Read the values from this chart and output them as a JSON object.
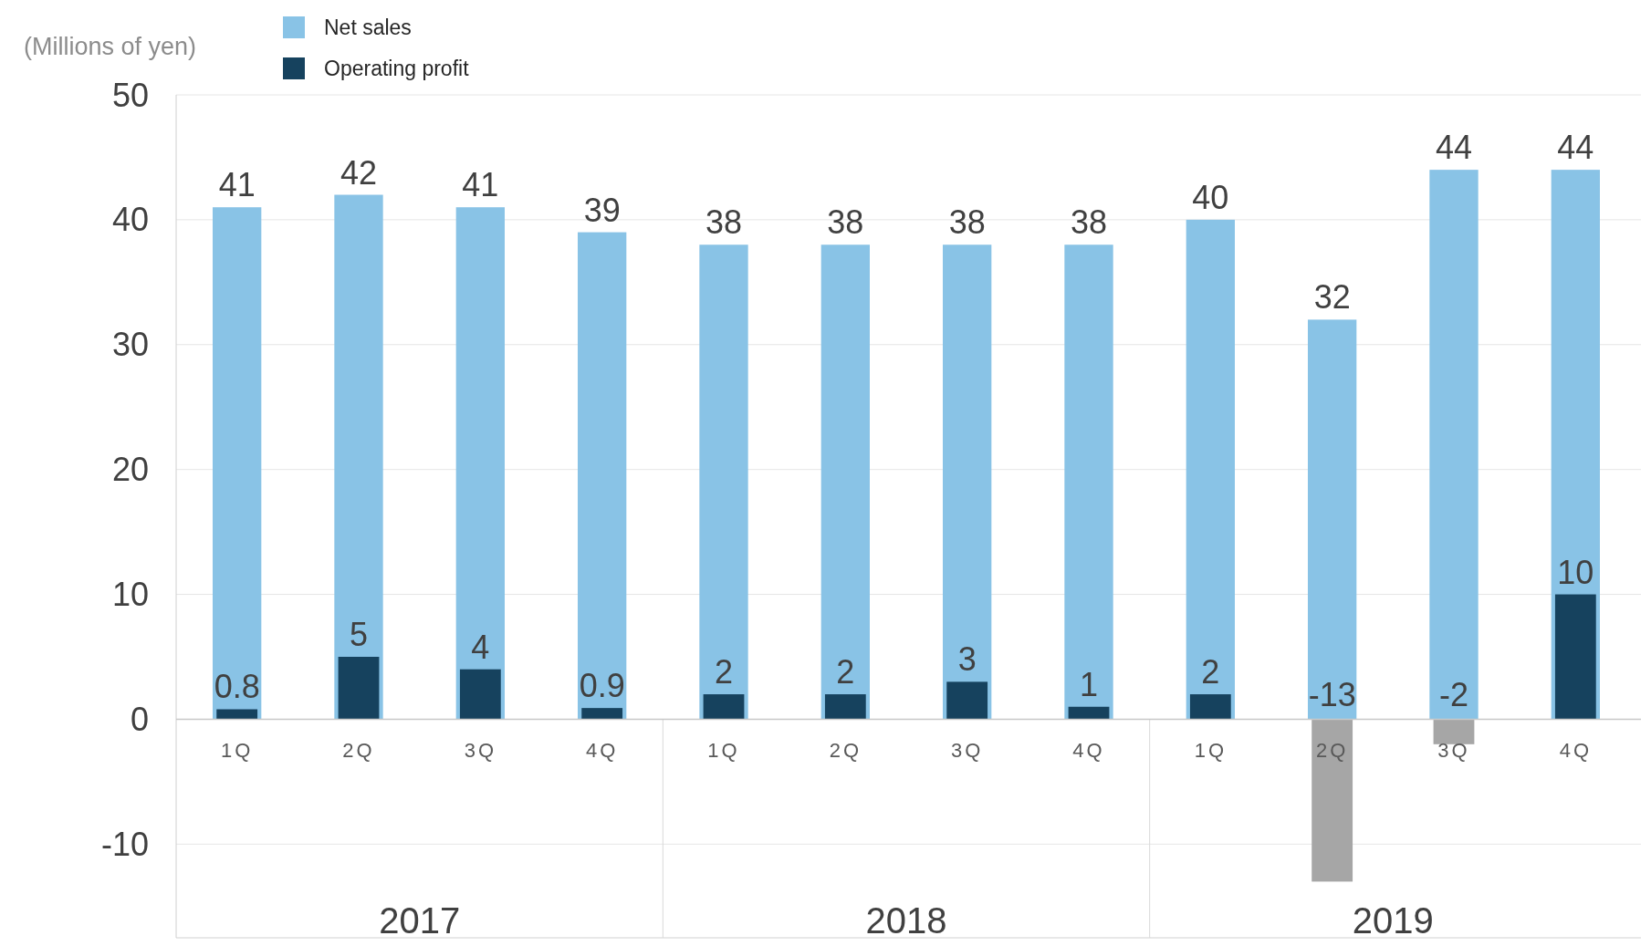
{
  "chart_data": {
    "type": "bar",
    "ylabel": "(Millions of yen)",
    "categories": [
      "1Q",
      "2Q",
      "3Q",
      "4Q",
      "1Q",
      "2Q",
      "3Q",
      "4Q",
      "1Q",
      "2Q",
      "3Q",
      "4Q"
    ],
    "series": [
      {
        "name": "Net sales",
        "color": "#89c3e6",
        "values": [
          41,
          42,
          41,
          39,
          38,
          38,
          38,
          38,
          40,
          32,
          44,
          44
        ]
      },
      {
        "name": "Operating profit",
        "color": "#16425e",
        "colors": [
          "#16425e",
          "#16425e",
          "#16425e",
          "#16425e",
          "#16425e",
          "#16425e",
          "#16425e",
          "#16425e",
          "#16425e",
          "#a6a6a6",
          "#a6a6a6",
          "#16425e"
        ],
        "values": [
          0.8,
          5,
          4,
          0.9,
          2,
          2,
          3,
          1,
          2,
          -13,
          -2,
          10
        ]
      }
    ],
    "data_labels": true,
    "ylim": [
      -17.5,
      50
    ],
    "yticks": [
      -10,
      0,
      10,
      20,
      30,
      40,
      50
    ],
    "grid": "y",
    "legend": "top left",
    "annotations": [
      "2017",
      "2018",
      "2019"
    ]
  }
}
